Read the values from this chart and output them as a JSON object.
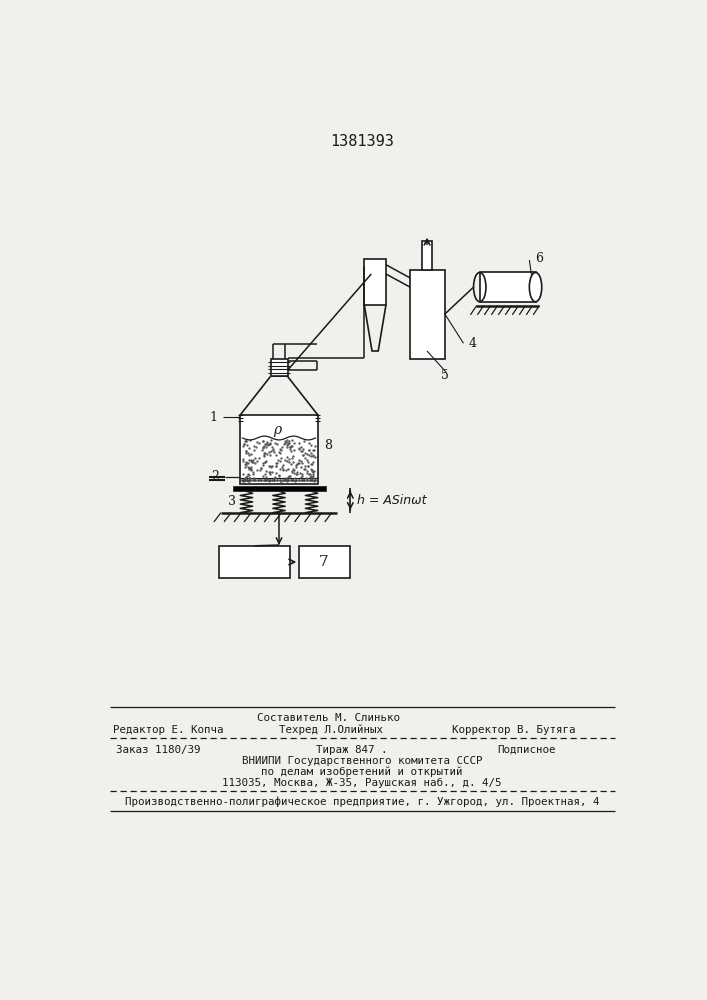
{
  "title": "1381393",
  "bg_color": "#f2f0ec",
  "line_color": "#1a1a1a",
  "footer": {
    "sostavitel": "Составитель М. Слинько",
    "redaktor": "Редактор Е. Копча",
    "tehred": "Техред Л.Олийных",
    "korrektor": "Корректор В. Бутяга",
    "zakaz": "Заказ 1180/39",
    "tirazh": "Тираж 847 .",
    "podpisnoe": "Подписное",
    "vniipи": "ВНИИПИ Государственного комитета СССР",
    "po_delam": "по делам изобретений и открытий",
    "adres": "113035, Москва, Ж-35, Раушская наб., д. 4/5",
    "predpr": "Производственно-полиграфическое предприятие, г. Ужгород, ул. Проектная, 4"
  }
}
